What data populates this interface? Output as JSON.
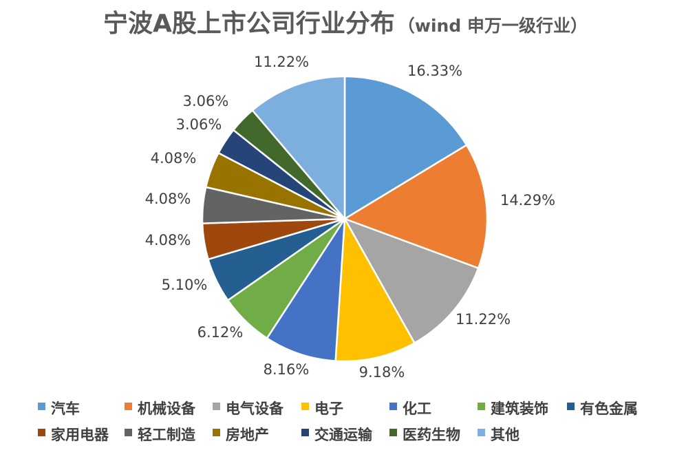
{
  "chart_data": {
    "type": "pie",
    "title": "宁波A股上市公司行业分布",
    "subtitle": "（wind 申万一级行业）",
    "slices": [
      {
        "name": "汽车",
        "value": 16.33,
        "label": "16.33%",
        "color": "#5B9BD5"
      },
      {
        "name": "机械设备",
        "value": 14.29,
        "label": "14.29%",
        "color": "#ED7D31"
      },
      {
        "name": "电气设备",
        "value": 11.22,
        "label": "11.22%",
        "color": "#A5A5A5"
      },
      {
        "name": "电子",
        "value": 9.18,
        "label": "9.18%",
        "color": "#FFC000"
      },
      {
        "name": "化工",
        "value": 8.16,
        "label": "8.16%",
        "color": "#4472C4"
      },
      {
        "name": "建筑装饰",
        "value": 6.12,
        "label": "6.12%",
        "color": "#70AD47"
      },
      {
        "name": "有色金属",
        "value": 5.1,
        "label": "5.10%",
        "color": "#255E91"
      },
      {
        "name": "家用电器",
        "value": 4.08,
        "label": "4.08%",
        "color": "#9E480E"
      },
      {
        "name": "轻工制造",
        "value": 4.08,
        "label": "4.08%",
        "color": "#636363"
      },
      {
        "name": "房地产",
        "value": 4.08,
        "label": "4.08%",
        "color": "#997300"
      },
      {
        "name": "交通运输",
        "value": 3.06,
        "label": "3.06%",
        "color": "#264478"
      },
      {
        "name": "医药生物",
        "value": 3.06,
        "label": "3.06%",
        "color": "#43682B"
      },
      {
        "name": "其他",
        "value": 11.22,
        "label": "11.22%",
        "color": "#7CAFDD"
      }
    ],
    "legend_placement": "bottom"
  }
}
